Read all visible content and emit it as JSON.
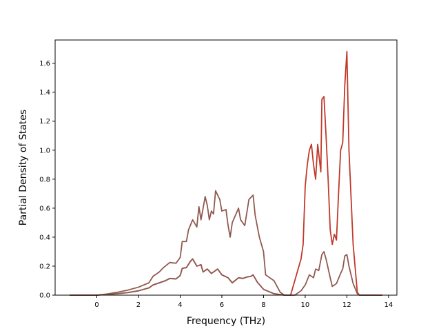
{
  "chart_data": {
    "type": "line",
    "title": "",
    "xlabel": "Frequency (THz)",
    "ylabel": "Partial Density of States",
    "xlim": [
      -2,
      14.4
    ],
    "ylim": [
      0,
      1.76
    ],
    "xticks": [
      0,
      2,
      4,
      6,
      8,
      10,
      12,
      14
    ],
    "yticks": [
      0.0,
      0.2,
      0.4,
      0.6,
      0.8,
      1.0,
      1.2,
      1.4,
      1.6
    ],
    "ytick_labels": [
      "0.0",
      "0.2",
      "0.4",
      "0.6",
      "0.8",
      "1.0",
      "1.2",
      "1.4",
      "1.6"
    ],
    "grid": false,
    "legend": false,
    "series": [
      {
        "color": "#c0392b",
        "points": [
          [
            -1.3,
            0
          ],
          [
            0,
            0
          ],
          [
            0.5,
            0.004
          ],
          [
            1.0,
            0.01
          ],
          [
            1.5,
            0.018
          ],
          [
            2.0,
            0.03
          ],
          [
            2.5,
            0.05
          ],
          [
            2.7,
            0.07
          ],
          [
            3.0,
            0.085
          ],
          [
            3.3,
            0.1
          ],
          [
            3.5,
            0.115
          ],
          [
            3.8,
            0.112
          ],
          [
            4.0,
            0.135
          ],
          [
            4.1,
            0.185
          ],
          [
            4.3,
            0.19
          ],
          [
            4.5,
            0.235
          ],
          [
            4.6,
            0.25
          ],
          [
            4.8,
            0.2
          ],
          [
            5.0,
            0.21
          ],
          [
            5.1,
            0.16
          ],
          [
            5.3,
            0.18
          ],
          [
            5.5,
            0.15
          ],
          [
            5.8,
            0.18
          ],
          [
            6.0,
            0.14
          ],
          [
            6.3,
            0.12
          ],
          [
            6.5,
            0.085
          ],
          [
            6.8,
            0.12
          ],
          [
            7.0,
            0.115
          ],
          [
            7.2,
            0.125
          ],
          [
            7.4,
            0.13
          ],
          [
            7.5,
            0.14
          ],
          [
            7.7,
            0.09
          ],
          [
            8.0,
            0.04
          ],
          [
            8.5,
            0.01
          ],
          [
            9.0,
            0.0
          ],
          [
            9.3,
            0.0
          ],
          [
            9.5,
            0.1
          ],
          [
            9.8,
            0.25
          ],
          [
            9.9,
            0.35
          ],
          [
            10.0,
            0.75
          ],
          [
            10.1,
            0.9
          ],
          [
            10.2,
            1.0
          ],
          [
            10.3,
            1.04
          ],
          [
            10.4,
            0.9
          ],
          [
            10.5,
            0.8
          ],
          [
            10.6,
            1.04
          ],
          [
            10.75,
            0.85
          ],
          [
            10.8,
            1.35
          ],
          [
            10.9,
            1.37
          ],
          [
            11.0,
            1.1
          ],
          [
            11.1,
            0.8
          ],
          [
            11.2,
            0.45
          ],
          [
            11.3,
            0.35
          ],
          [
            11.4,
            0.42
          ],
          [
            11.5,
            0.38
          ],
          [
            11.6,
            0.7
          ],
          [
            11.7,
            1.0
          ],
          [
            11.8,
            1.05
          ],
          [
            11.9,
            1.45
          ],
          [
            12.0,
            1.68
          ],
          [
            12.1,
            1.0
          ],
          [
            12.3,
            0.35
          ],
          [
            12.5,
            0.02
          ],
          [
            12.6,
            0.0
          ],
          [
            13.7,
            0.0
          ]
        ]
      },
      {
        "color": "#8e5a50",
        "points": [
          [
            -1.3,
            0
          ],
          [
            0,
            0
          ],
          [
            0.5,
            0.004
          ],
          [
            1.0,
            0.01
          ],
          [
            1.5,
            0.018
          ],
          [
            2.0,
            0.03
          ],
          [
            2.5,
            0.05
          ],
          [
            2.7,
            0.07
          ],
          [
            3.0,
            0.085
          ],
          [
            3.3,
            0.1
          ],
          [
            3.5,
            0.115
          ],
          [
            3.8,
            0.112
          ],
          [
            4.0,
            0.135
          ],
          [
            4.1,
            0.185
          ],
          [
            4.3,
            0.19
          ],
          [
            4.5,
            0.235
          ],
          [
            4.6,
            0.25
          ],
          [
            4.8,
            0.2
          ],
          [
            5.0,
            0.21
          ],
          [
            5.1,
            0.16
          ],
          [
            5.3,
            0.18
          ],
          [
            5.5,
            0.15
          ],
          [
            5.8,
            0.18
          ],
          [
            6.0,
            0.14
          ],
          [
            6.3,
            0.12
          ],
          [
            6.5,
            0.085
          ],
          [
            6.8,
            0.12
          ],
          [
            7.0,
            0.115
          ],
          [
            7.2,
            0.125
          ],
          [
            7.4,
            0.13
          ],
          [
            7.5,
            0.14
          ],
          [
            7.7,
            0.09
          ],
          [
            8.0,
            0.04
          ],
          [
            8.5,
            0.01
          ],
          [
            9.0,
            0.0
          ]
        ]
      },
      {
        "color": "#8e5a50",
        "points": [
          [
            -1.3,
            0
          ],
          [
            0,
            0
          ],
          [
            0.5,
            0.008
          ],
          [
            1.0,
            0.02
          ],
          [
            1.5,
            0.035
          ],
          [
            2.0,
            0.055
          ],
          [
            2.5,
            0.085
          ],
          [
            2.7,
            0.13
          ],
          [
            3.0,
            0.16
          ],
          [
            3.2,
            0.19
          ],
          [
            3.5,
            0.225
          ],
          [
            3.8,
            0.22
          ],
          [
            4.0,
            0.26
          ],
          [
            4.1,
            0.37
          ],
          [
            4.3,
            0.37
          ],
          [
            4.4,
            0.45
          ],
          [
            4.6,
            0.52
          ],
          [
            4.8,
            0.47
          ],
          [
            4.9,
            0.61
          ],
          [
            5.0,
            0.52
          ],
          [
            5.2,
            0.68
          ],
          [
            5.3,
            0.62
          ],
          [
            5.4,
            0.52
          ],
          [
            5.5,
            0.58
          ],
          [
            5.6,
            0.56
          ],
          [
            5.7,
            0.72
          ],
          [
            5.9,
            0.66
          ],
          [
            6.0,
            0.58
          ],
          [
            6.2,
            0.59
          ],
          [
            6.3,
            0.48
          ],
          [
            6.4,
            0.4
          ],
          [
            6.5,
            0.5
          ],
          [
            6.8,
            0.6
          ],
          [
            6.9,
            0.52
          ],
          [
            7.1,
            0.48
          ],
          [
            7.3,
            0.66
          ],
          [
            7.5,
            0.69
          ],
          [
            7.6,
            0.55
          ],
          [
            7.8,
            0.4
          ],
          [
            8.0,
            0.3
          ],
          [
            8.1,
            0.14
          ],
          [
            8.5,
            0.1
          ],
          [
            8.8,
            0.02
          ],
          [
            9.0,
            0.0
          ],
          [
            9.5,
            0.0
          ],
          [
            9.8,
            0.03
          ],
          [
            10.0,
            0.07
          ],
          [
            10.2,
            0.14
          ],
          [
            10.4,
            0.12
          ],
          [
            10.5,
            0.18
          ],
          [
            10.65,
            0.17
          ],
          [
            10.8,
            0.28
          ],
          [
            10.9,
            0.3
          ],
          [
            11.0,
            0.25
          ],
          [
            11.2,
            0.12
          ],
          [
            11.3,
            0.06
          ],
          [
            11.5,
            0.08
          ],
          [
            11.7,
            0.15
          ],
          [
            11.8,
            0.18
          ],
          [
            11.9,
            0.27
          ],
          [
            12.0,
            0.28
          ],
          [
            12.1,
            0.2
          ],
          [
            12.3,
            0.08
          ],
          [
            12.5,
            0.01
          ],
          [
            12.6,
            0.0
          ],
          [
            13.7,
            0.0
          ]
        ]
      }
    ]
  }
}
